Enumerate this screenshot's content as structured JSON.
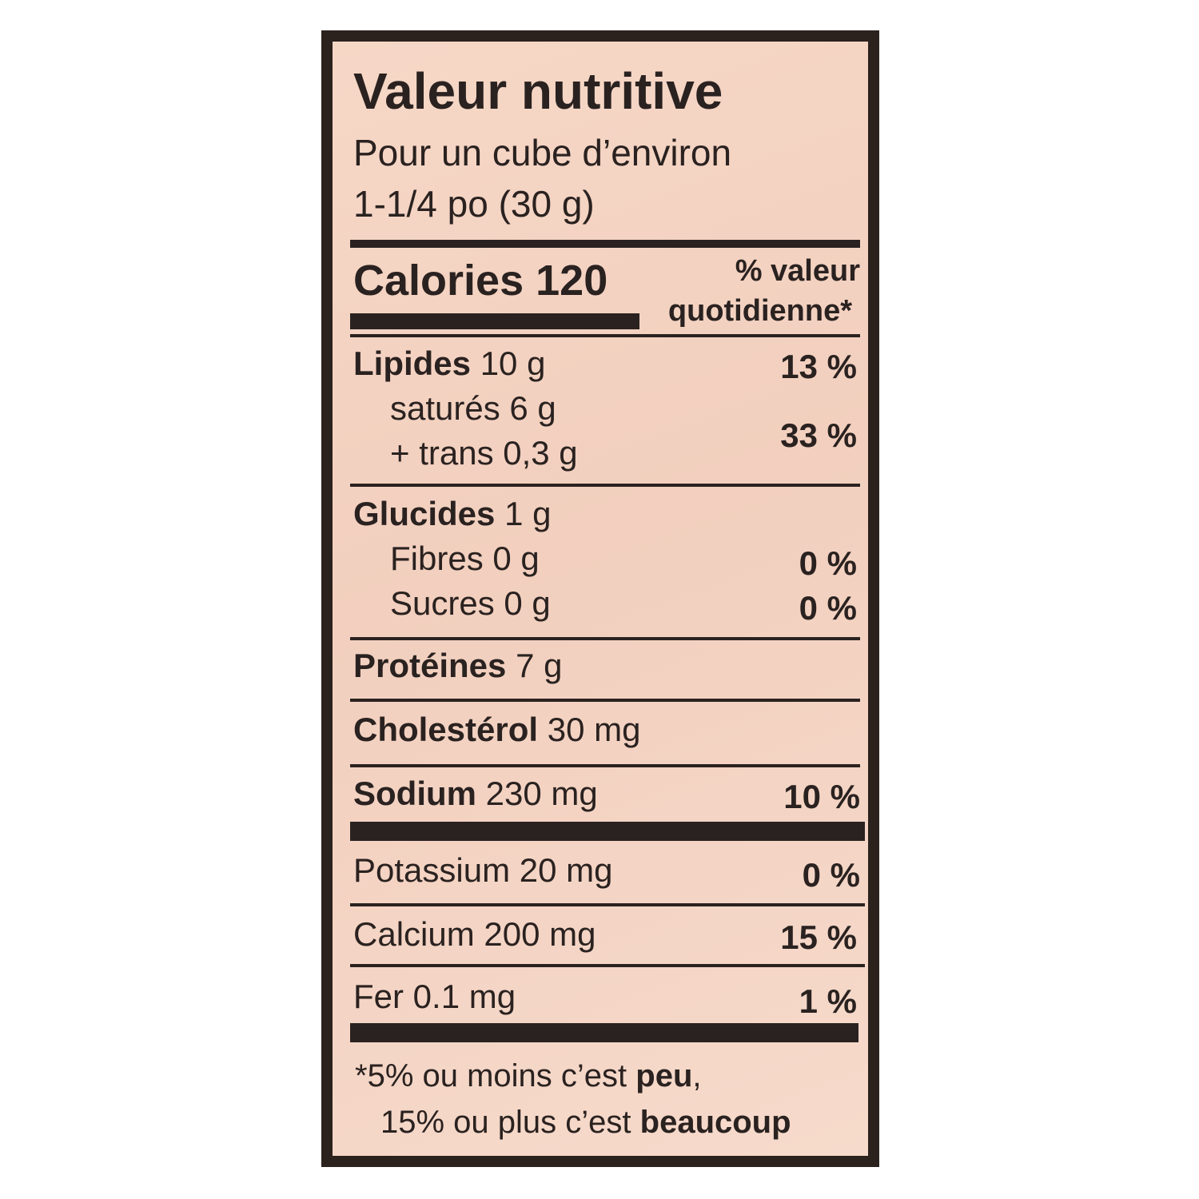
{
  "label": {
    "title": "Valeur nutritive",
    "serving_line1": "Pour un cube d’environ",
    "serving_line2": "1-1/4 po (30 g)",
    "calories_label": "Calories",
    "calories_value": "120",
    "dv_header_line1": "% valeur",
    "dv_header_line2": "quotidienne*",
    "rows": [
      {
        "name": "Lipides",
        "amount": "10 g",
        "dv": "13 %"
      },
      {
        "name": "saturés",
        "amount": "6 g",
        "dv": ""
      },
      {
        "name": "+ trans",
        "amount": "0,3 g",
        "dv": "33 %"
      },
      {
        "name": "Glucides",
        "amount": "1 g",
        "dv": ""
      },
      {
        "name": "Fibres",
        "amount": "0 g",
        "dv": "0 %"
      },
      {
        "name": "Sucres",
        "amount": "0 g",
        "dv": "0 %"
      },
      {
        "name": "Protéines",
        "amount": "7 g",
        "dv": ""
      },
      {
        "name": "Cholestérol",
        "amount": "30 mg",
        "dv": ""
      },
      {
        "name": "Sodium",
        "amount": "230 mg",
        "dv": "10 %"
      },
      {
        "name": "Potassium",
        "amount": "20 mg",
        "dv": "0 %"
      },
      {
        "name": "Calcium",
        "amount": "200 mg",
        "dv": "15 %"
      },
      {
        "name": "Fer",
        "amount": "0.1 mg",
        "dv": "1 %"
      }
    ],
    "footnote": {
      "line1_prefix": "*5% ou moins c’est ",
      "line1_bold": "peu",
      "line1_suffix": ",",
      "line2_prefix": "15% ou plus c’est ",
      "line2_bold": "beaucoup"
    }
  },
  "colors": {
    "label_bg": "#f4d3c2",
    "ink": "#2a2220",
    "frame": "#2b211d"
  }
}
